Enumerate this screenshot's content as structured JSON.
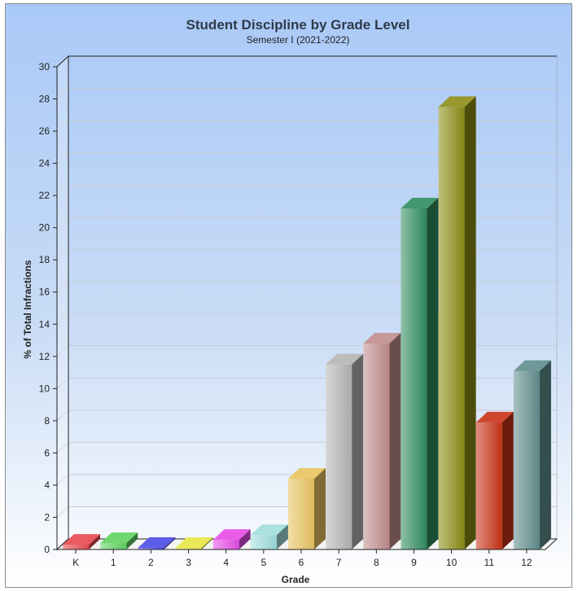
{
  "chart_data": {
    "type": "bar",
    "title": "Student Discipline by Grade Level",
    "subtitle": "Semester I (2021-2022)",
    "xlabel": "Grade",
    "ylabel": "% of Total Infractions",
    "categories": [
      "K",
      "1",
      "2",
      "3",
      "4",
      "5",
      "6",
      "7",
      "8",
      "9",
      "10",
      "11",
      "12"
    ],
    "values": [
      0.3,
      0.4,
      0.1,
      0.0,
      0.6,
      0.9,
      4.4,
      11.5,
      12.8,
      21.2,
      27.5,
      7.9,
      11.1
    ],
    "colors": [
      "#e8494f",
      "#5fd35f",
      "#4b4be6",
      "#e6e645",
      "#e64be6",
      "#9fdede",
      "#e8c35f",
      "#b4b4b4",
      "#c08c8c",
      "#2f8c5f",
      "#8c8c14",
      "#c83214",
      "#5f8c8c"
    ],
    "ylim": [
      0,
      30
    ],
    "yticks": [
      0,
      2,
      4,
      6,
      8,
      10,
      12,
      14,
      16,
      18,
      20,
      22,
      24,
      26,
      28,
      30
    ],
    "grid": true,
    "legend": "none"
  }
}
